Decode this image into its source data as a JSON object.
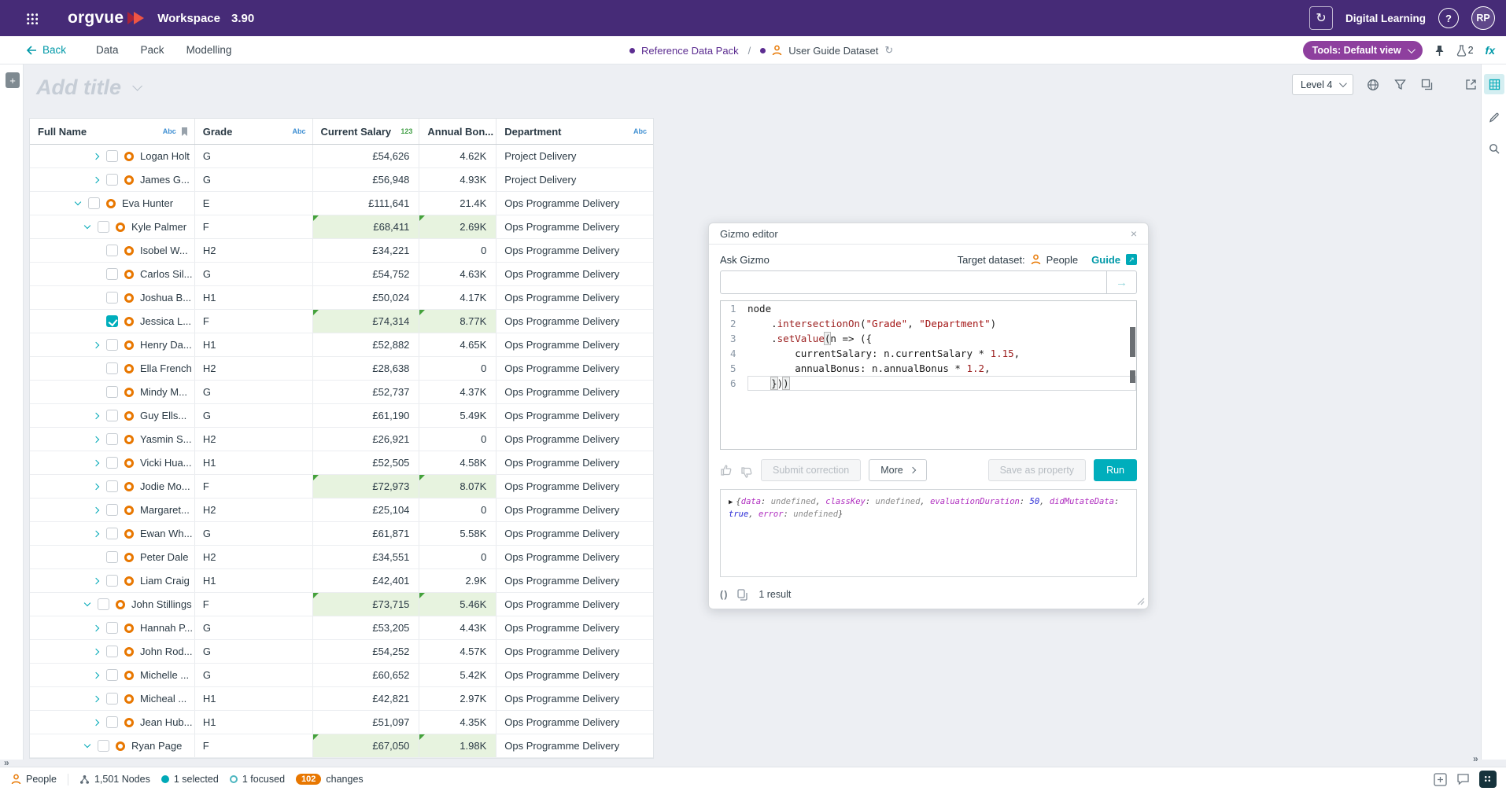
{
  "topbar": {
    "product": "orgvue",
    "app": "Workspace",
    "version": "3.90",
    "workspace": "Digital Learning",
    "help": "?",
    "avatar": "RP"
  },
  "icons": {
    "close": "×",
    "submit_arrow": "→",
    "sync": "↻",
    "refresh": "↻",
    "expand_more": "»",
    "fx": "fx",
    "code": "( )",
    "plus": "+"
  },
  "nav": {
    "back": "Back",
    "items": [
      "Data",
      "Pack",
      "Modelling"
    ],
    "breadcrumb": {
      "pack": "Reference Data Pack",
      "sep": "/",
      "dataset": "User Guide Dataset"
    },
    "tools": "Tools: Default view",
    "beaker_count": "2"
  },
  "canvas": {
    "title_placeholder": "Add title",
    "level": "Level 4"
  },
  "table": {
    "columns": [
      {
        "label": "Full Name",
        "badge": "Abc",
        "badge_type": "abc",
        "bookmark": true
      },
      {
        "label": "Grade",
        "badge": "Abc",
        "badge_type": "abc",
        "bookmark": false
      },
      {
        "label": "Current Salary",
        "badge": "123",
        "badge_type": "num",
        "bookmark": false
      },
      {
        "label": "Annual Bon...",
        "badge": "",
        "badge_type": "",
        "bookmark": false
      },
      {
        "label": "Department",
        "badge": "Abc",
        "badge_type": "abc",
        "bookmark": false
      }
    ],
    "rows": [
      {
        "name": "Logan Holt",
        "grade": "G",
        "salary": "£54,626",
        "bonus": "4.62K",
        "dept": "Project Delivery",
        "level": 2,
        "chevron": "right",
        "checked": false,
        "hl": false
      },
      {
        "name": "James G...",
        "grade": "G",
        "salary": "£56,948",
        "bonus": "4.93K",
        "dept": "Project Delivery",
        "level": 2,
        "chevron": "right",
        "checked": false,
        "hl": false
      },
      {
        "name": "Eva Hunter",
        "grade": "E",
        "salary": "£111,641",
        "bonus": "21.4K",
        "dept": "Ops Programme Delivery",
        "level": 0,
        "chevron": "down",
        "checked": false,
        "hl": false
      },
      {
        "name": "Kyle Palmer",
        "grade": "F",
        "salary": "£68,411",
        "bonus": "2.69K",
        "dept": "Ops Programme Delivery",
        "level": 1,
        "chevron": "down",
        "checked": false,
        "hl": true
      },
      {
        "name": "Isobel W...",
        "grade": "H2",
        "salary": "£34,221",
        "bonus": "0",
        "dept": "Ops Programme Delivery",
        "level": 2,
        "chevron": "none",
        "checked": false,
        "hl": false
      },
      {
        "name": "Carlos Sil...",
        "grade": "G",
        "salary": "£54,752",
        "bonus": "4.63K",
        "dept": "Ops Programme Delivery",
        "level": 2,
        "chevron": "none",
        "checked": false,
        "hl": false
      },
      {
        "name": "Joshua B...",
        "grade": "H1",
        "salary": "£50,024",
        "bonus": "4.17K",
        "dept": "Ops Programme Delivery",
        "level": 2,
        "chevron": "none",
        "checked": false,
        "hl": false
      },
      {
        "name": "Jessica L...",
        "grade": "F",
        "salary": "£74,314",
        "bonus": "8.77K",
        "dept": "Ops Programme Delivery",
        "level": 2,
        "chevron": "none",
        "checked": true,
        "hl": true
      },
      {
        "name": "Henry Da...",
        "grade": "H1",
        "salary": "£52,882",
        "bonus": "4.65K",
        "dept": "Ops Programme Delivery",
        "level": 2,
        "chevron": "right",
        "checked": false,
        "hl": false
      },
      {
        "name": "Ella French",
        "grade": "H2",
        "salary": "£28,638",
        "bonus": "0",
        "dept": "Ops Programme Delivery",
        "level": 2,
        "chevron": "none",
        "checked": false,
        "hl": false
      },
      {
        "name": "Mindy M...",
        "grade": "G",
        "salary": "£52,737",
        "bonus": "4.37K",
        "dept": "Ops Programme Delivery",
        "level": 2,
        "chevron": "none",
        "checked": false,
        "hl": false
      },
      {
        "name": "Guy Ells...",
        "grade": "G",
        "salary": "£61,190",
        "bonus": "5.49K",
        "dept": "Ops Programme Delivery",
        "level": 2,
        "chevron": "right",
        "checked": false,
        "hl": false
      },
      {
        "name": "Yasmin S...",
        "grade": "H2",
        "salary": "£26,921",
        "bonus": "0",
        "dept": "Ops Programme Delivery",
        "level": 2,
        "chevron": "right",
        "checked": false,
        "hl": false
      },
      {
        "name": "Vicki Hua...",
        "grade": "H1",
        "salary": "£52,505",
        "bonus": "4.58K",
        "dept": "Ops Programme Delivery",
        "level": 2,
        "chevron": "right",
        "checked": false,
        "hl": false
      },
      {
        "name": "Jodie Mo...",
        "grade": "F",
        "salary": "£72,973",
        "bonus": "8.07K",
        "dept": "Ops Programme Delivery",
        "level": 2,
        "chevron": "right",
        "checked": false,
        "hl": true
      },
      {
        "name": "Margaret...",
        "grade": "H2",
        "salary": "£25,104",
        "bonus": "0",
        "dept": "Ops Programme Delivery",
        "level": 2,
        "chevron": "right",
        "checked": false,
        "hl": false
      },
      {
        "name": "Ewan Wh...",
        "grade": "G",
        "salary": "£61,871",
        "bonus": "5.58K",
        "dept": "Ops Programme Delivery",
        "level": 2,
        "chevron": "right",
        "checked": false,
        "hl": false
      },
      {
        "name": "Peter Dale",
        "grade": "H2",
        "salary": "£34,551",
        "bonus": "0",
        "dept": "Ops Programme Delivery",
        "level": 2,
        "chevron": "none",
        "checked": false,
        "hl": false
      },
      {
        "name": "Liam Craig",
        "grade": "H1",
        "salary": "£42,401",
        "bonus": "2.9K",
        "dept": "Ops Programme Delivery",
        "level": 2,
        "chevron": "right",
        "checked": false,
        "hl": false
      },
      {
        "name": "John Stillings",
        "grade": "F",
        "salary": "£73,715",
        "bonus": "5.46K",
        "dept": "Ops Programme Delivery",
        "level": 1,
        "chevron": "down",
        "checked": false,
        "hl": true
      },
      {
        "name": "Hannah P...",
        "grade": "G",
        "salary": "£53,205",
        "bonus": "4.43K",
        "dept": "Ops Programme Delivery",
        "level": 2,
        "chevron": "right",
        "checked": false,
        "hl": false
      },
      {
        "name": "John Rod...",
        "grade": "G",
        "salary": "£54,252",
        "bonus": "4.57K",
        "dept": "Ops Programme Delivery",
        "level": 2,
        "chevron": "right",
        "checked": false,
        "hl": false
      },
      {
        "name": "Michelle ...",
        "grade": "G",
        "salary": "£60,652",
        "bonus": "5.42K",
        "dept": "Ops Programme Delivery",
        "level": 2,
        "chevron": "right",
        "checked": false,
        "hl": false
      },
      {
        "name": "Micheal ...",
        "grade": "H1",
        "salary": "£42,821",
        "bonus": "2.97K",
        "dept": "Ops Programme Delivery",
        "level": 2,
        "chevron": "right",
        "checked": false,
        "hl": false
      },
      {
        "name": "Jean Hub...",
        "grade": "H1",
        "salary": "£51,097",
        "bonus": "4.35K",
        "dept": "Ops Programme Delivery",
        "level": 2,
        "chevron": "right",
        "checked": false,
        "hl": false
      },
      {
        "name": "Ryan Page",
        "grade": "F",
        "salary": "£67,050",
        "bonus": "1.98K",
        "dept": "Ops Programme Delivery",
        "level": 1,
        "chevron": "down",
        "checked": false,
        "hl": true
      }
    ]
  },
  "gizmo": {
    "title": "Gizmo editor",
    "ask_label": "Ask Gizmo",
    "target_label": "Target dataset:",
    "target_dataset": "People",
    "guide": "Guide",
    "code_lines": [
      {
        "num": "1",
        "current": false,
        "tokens": [
          [
            "p",
            "node"
          ]
        ]
      },
      {
        "num": "2",
        "current": false,
        "tokens": [
          [
            "p",
            "    ."
          ],
          [
            "m",
            "intersectionOn"
          ],
          [
            "p",
            "("
          ],
          [
            "s",
            "\"Grade\""
          ],
          [
            "p",
            ", "
          ],
          [
            "s",
            "\"Department\""
          ],
          [
            "p",
            ")"
          ]
        ]
      },
      {
        "num": "3",
        "current": false,
        "tokens": [
          [
            "p",
            "    ."
          ],
          [
            "m",
            "setValue"
          ],
          [
            "bm",
            "("
          ],
          [
            "p",
            "n => ({"
          ]
        ]
      },
      {
        "num": "4",
        "current": false,
        "tokens": [
          [
            "p",
            "        currentSalary: n.currentSalary * "
          ],
          [
            "n",
            "1.15"
          ],
          [
            "p",
            ","
          ]
        ]
      },
      {
        "num": "5",
        "current": false,
        "tokens": [
          [
            "p",
            "        annualBonus: n.annualBonus * "
          ],
          [
            "n",
            "1.2"
          ],
          [
            "p",
            ","
          ]
        ]
      },
      {
        "num": "6",
        "current": true,
        "tokens": [
          [
            "p",
            "    "
          ],
          [
            "bm",
            "}"
          ],
          [
            "p",
            ")"
          ],
          [
            "bm",
            ")"
          ]
        ]
      }
    ],
    "buttons": {
      "submit": "Submit correction",
      "more": "More",
      "save": "Save as property",
      "run": "Run"
    },
    "console": {
      "arrow": "▶",
      "tokens": [
        [
          "b",
          "{"
        ],
        [
          "k",
          "data"
        ],
        [
          "b",
          ": "
        ],
        [
          "u",
          "undefined"
        ],
        [
          "b",
          ", "
        ],
        [
          "k",
          "classKey"
        ],
        [
          "b",
          ": "
        ],
        [
          "u",
          "undefined"
        ],
        [
          "b",
          ", "
        ],
        [
          "k",
          "evaluationDuration"
        ],
        [
          "b",
          ": "
        ],
        [
          "num",
          "50"
        ],
        [
          "b",
          ", "
        ],
        [
          "k",
          "didMutateData"
        ],
        [
          "b",
          ": "
        ],
        [
          "bool",
          "true"
        ],
        [
          "b",
          ", "
        ],
        [
          "k",
          "error"
        ],
        [
          "b",
          ": "
        ],
        [
          "u",
          "undefined"
        ],
        [
          "b",
          "}"
        ]
      ]
    },
    "result_count": "1 result"
  },
  "statusbar": {
    "dataset": "People",
    "nodes": "1,501 Nodes",
    "selected": "1 selected",
    "focused": "1 focused",
    "changes_count": "102",
    "changes_label": "changes"
  }
}
